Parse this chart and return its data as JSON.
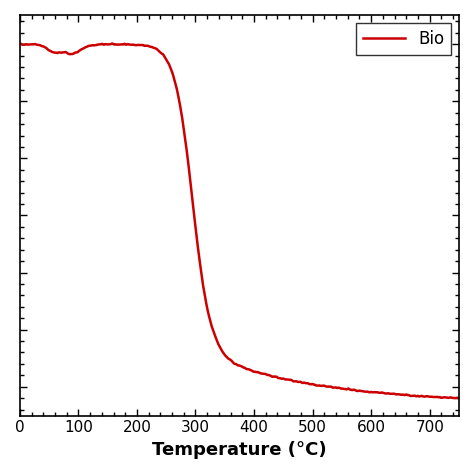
{
  "title": "",
  "xlabel": "Temperature (°C)",
  "ylabel": "",
  "line_color": "#cc0000",
  "line_width": 1.8,
  "legend_label": "Bio",
  "x_min": 0,
  "x_max": 750,
  "x_ticks": [
    0,
    100,
    200,
    300,
    400,
    500,
    600,
    700
  ],
  "background_color": "#ffffff",
  "legend_loc": "upper right"
}
